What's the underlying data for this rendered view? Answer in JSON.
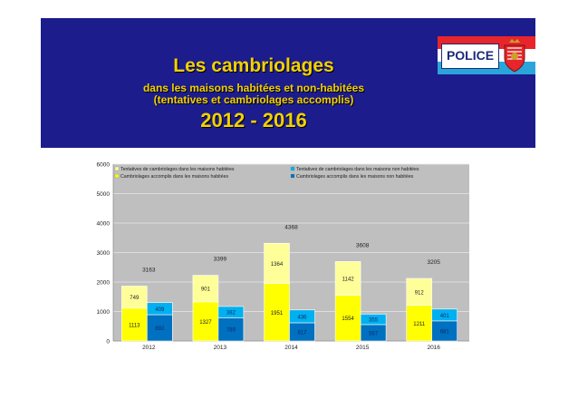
{
  "header": {
    "title": "Les cambriolages",
    "subtitle_line1": "dans  les maisons habitées et non-habitées",
    "subtitle_line2": "(tentatives et cambriolages accomplis)",
    "years": "2012 - 2016",
    "logo_text": "POLICE",
    "flag_colors": [
      "#e8252a",
      "#ffffff",
      "#2aa5dc"
    ],
    "banner_color": "#1c1c8c",
    "title_color": "#f2d100"
  },
  "chart_data": {
    "type": "bar",
    "stacked": true,
    "categories": [
      "2012",
      "2013",
      "2014",
      "2015",
      "2016"
    ],
    "series": [
      {
        "name": "Cambriolages accomplis dans les maisons habitées",
        "group": "habitées",
        "color": "#ffff00",
        "values": [
          1113,
          1327,
          1951,
          1554,
          1211
        ]
      },
      {
        "name": "Tentatives de cambriolages dans les maisons habitées",
        "group": "habitées",
        "color": "#ffff99",
        "values": [
          749,
          901,
          1364,
          1142,
          912
        ]
      },
      {
        "name": "Cambriolages accomplis dans les maisons non habitées",
        "group": "non habitées",
        "color": "#0070c0",
        "values": [
          892,
          789,
          617,
          557,
          681
        ]
      },
      {
        "name": "Tentatives de cambriolages dans les maisons non habitées",
        "group": "non habitées",
        "color": "#00b0f0",
        "values": [
          409,
          382,
          436,
          355,
          401
        ]
      }
    ],
    "totals": [
      3163,
      3399,
      4368,
      3608,
      3205
    ],
    "legend": [
      {
        "label": "Tentatives de cambriolages  dans les maisons habitées",
        "color": "#ffff99"
      },
      {
        "label": "Tentatives de cambriolages dans les maisons non habitées",
        "color": "#00b0f0"
      },
      {
        "label": "Cambriolages accomplis dans les maisons habitées",
        "color": "#ffff00"
      },
      {
        "label": "Cambriolages accomplis dans les maisons non habitées",
        "color": "#0070c0"
      }
    ],
    "legend_position": "top",
    "ylim": [
      0,
      6000
    ],
    "yticks": [
      "0",
      "1000",
      "2000",
      "3000",
      "4000",
      "5000",
      "6000"
    ],
    "grid": true,
    "plot_background": "#bfbfbf"
  }
}
